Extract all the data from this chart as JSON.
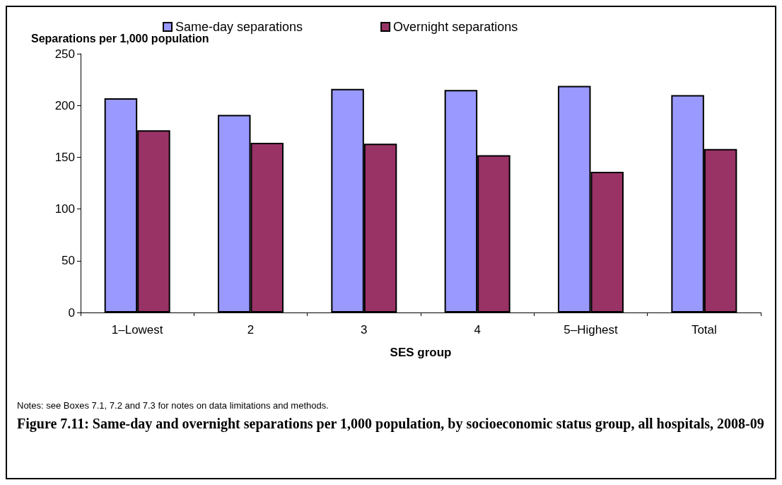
{
  "chart_data": {
    "type": "bar",
    "title": "Figure 7.11: Same-day and overnight separations per 1,000 population, by socioeconomic status group, all hospitals, 2008-09",
    "ylabel": "Separations per 1,000 population",
    "xlabel": "SES group",
    "annotations": [
      "Notes: see Boxes 7.1, 7.2 and 7.3 for notes on data limitations and methods."
    ],
    "categories": [
      "1–Lowest",
      "2",
      "3",
      "4",
      "5–Highest",
      "Total"
    ],
    "series": [
      {
        "name": "Same-day separations",
        "color": "#9999ff",
        "values": [
          207,
          191,
          216,
          215,
          219,
          210
        ]
      },
      {
        "name": "Overnight separations",
        "color": "#993366",
        "values": [
          176,
          164,
          163,
          152,
          136,
          158
        ]
      }
    ],
    "ylim": [
      0,
      250
    ],
    "yticks": [
      0,
      50,
      100,
      150,
      200,
      250
    ],
    "grid": false,
    "legend": "top"
  }
}
